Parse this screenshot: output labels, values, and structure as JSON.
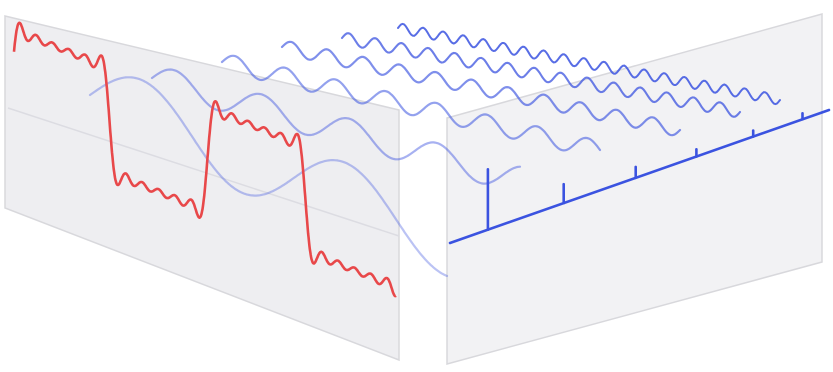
{
  "colors": {
    "background": "#ffffff",
    "panel_fill": "#f2f2f4",
    "panel_edge": "#d8d8dc",
    "time_signal": "#e8484a",
    "harmonic": "#3b53e0",
    "spectrum": "#3b53e0"
  },
  "diagram": {
    "time_domain": {
      "signal": "square-wave-approximation",
      "harmonics_summed": 6
    },
    "frequency_domain": {
      "components": [
        {
          "harmonic": 1,
          "relative_amplitude": 1.0
        },
        {
          "harmonic": 3,
          "relative_amplitude": 0.33
        },
        {
          "harmonic": 5,
          "relative_amplitude": 0.2
        },
        {
          "harmonic": 7,
          "relative_amplitude": 0.14
        },
        {
          "harmonic": 9,
          "relative_amplitude": 0.11
        },
        {
          "harmonic": 11,
          "relative_amplitude": 0.09
        }
      ]
    }
  }
}
